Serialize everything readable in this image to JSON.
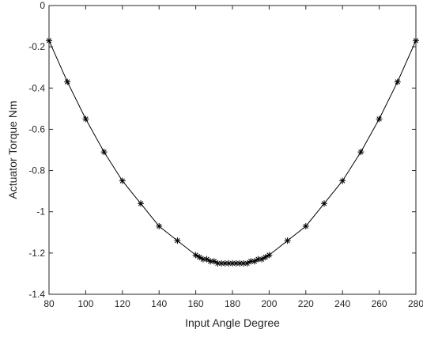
{
  "chart_data": {
    "type": "line",
    "title": "",
    "xlabel": "Input Angle Degree",
    "ylabel": "Actuator Torque Nm",
    "xlim": [
      80,
      280
    ],
    "ylim": [
      -1.4,
      0
    ],
    "xticks": [
      80,
      100,
      120,
      140,
      160,
      180,
      200,
      220,
      240,
      260,
      280
    ],
    "yticks": [
      0,
      -0.2,
      -0.4,
      -0.6,
      -0.8,
      -1,
      -1.2,
      -1.4
    ],
    "xtick_labels": [
      "80",
      "100",
      "120",
      "140",
      "160",
      "180",
      "200",
      "220",
      "240",
      "260",
      "280"
    ],
    "ytick_labels": [
      "0",
      "-0.2",
      "-0.4",
      "-0.6",
      "-0.8",
      "-1",
      "-1.2",
      "-1.4"
    ],
    "grid": false,
    "line_color": "#000000",
    "marker": "asterisk",
    "series": [
      {
        "x": [
          80,
          90,
          100,
          110,
          120,
          130,
          140,
          150,
          160,
          162,
          164,
          166,
          168,
          170,
          172,
          174,
          176,
          178,
          180,
          182,
          184,
          186,
          188,
          190,
          192,
          194,
          196,
          198,
          200,
          210,
          220,
          230,
          240,
          250,
          260,
          270,
          280
        ],
        "y": [
          -0.17,
          -0.37,
          -0.55,
          -0.71,
          -0.85,
          -0.96,
          -1.07,
          -1.14,
          -1.21,
          -1.22,
          -1.23,
          -1.23,
          -1.24,
          -1.24,
          -1.25,
          -1.25,
          -1.25,
          -1.25,
          -1.25,
          -1.25,
          -1.25,
          -1.25,
          -1.25,
          -1.24,
          -1.24,
          -1.23,
          -1.23,
          -1.22,
          -1.21,
          -1.14,
          -1.07,
          -0.96,
          -0.85,
          -0.71,
          -0.55,
          -0.37,
          -0.17
        ]
      }
    ]
  }
}
